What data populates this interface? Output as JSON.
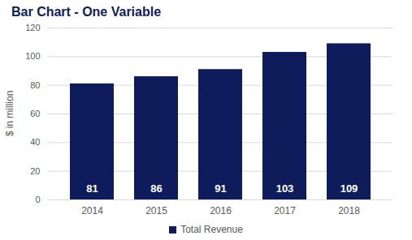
{
  "chart_data": {
    "type": "bar",
    "title": "Bar Chart - One Variable",
    "y_label": "$ in million",
    "categories": [
      "2014",
      "2015",
      "2016",
      "2017",
      "2018"
    ],
    "series": [
      {
        "name": "Total Revenue",
        "color": "#0e1c5c",
        "values": [
          81,
          86,
          91,
          103,
          109
        ]
      }
    ],
    "ylim": [
      0,
      120
    ],
    "yticks": [
      0,
      20,
      40,
      60,
      80,
      100,
      120
    ],
    "grid": true,
    "data_labels": true,
    "legend": "bottom"
  }
}
